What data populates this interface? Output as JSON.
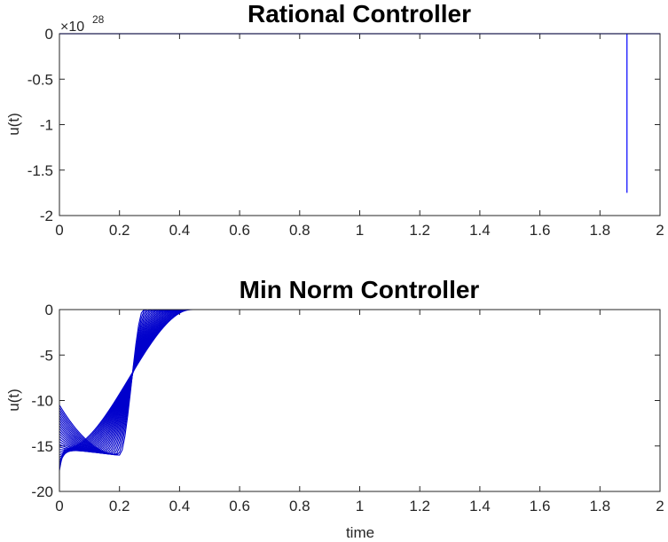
{
  "figure": {
    "background": "#ffffff",
    "axis_color": "#262626"
  },
  "chart_data": [
    {
      "type": "line",
      "title": "Rational Controller",
      "xlabel": "",
      "ylabel": "u(t)",
      "xlim": [
        0,
        2
      ],
      "ylim": [
        -2,
        0
      ],
      "xticks": [
        "0",
        "0.2",
        "0.4",
        "0.6",
        "0.8",
        "1",
        "1.2",
        "1.4",
        "1.6",
        "1.8",
        "2"
      ],
      "yticks": [
        "0",
        "-0.5",
        "-1",
        "-1.5",
        "-2"
      ],
      "y_exponent": {
        "base": "×10",
        "power": "28"
      },
      "grid": false,
      "line_color": "#0000ff",
      "series": [
        {
          "x": [
            0,
            1.89,
            1.89,
            1.89,
            1.9,
            2
          ],
          "y": [
            0,
            0,
            -1.75,
            0,
            0,
            0
          ]
        }
      ]
    },
    {
      "type": "line",
      "title": "Min Norm Controller",
      "xlabel": "time",
      "ylabel": "u(t)",
      "xlim": [
        0,
        2
      ],
      "ylim": [
        -20,
        0
      ],
      "xticks": [
        "0",
        "0.2",
        "0.4",
        "0.6",
        "0.8",
        "1",
        "1.2",
        "1.4",
        "1.6",
        "1.8",
        "2"
      ],
      "yticks": [
        "0",
        "-5",
        "-10",
        "-15",
        "-20"
      ],
      "grid": false,
      "line_color": "#0000cc",
      "curve_family": {
        "count": 26,
        "start_value_range": [
          -10.5,
          -17.7
        ],
        "trough_time_range": [
          0.02,
          0.2
        ],
        "trough_value_range": [
          -15.3,
          -16.0
        ],
        "zero_crossing_time_range": [
          0.28,
          0.44
        ],
        "final_value": 0
      }
    }
  ]
}
